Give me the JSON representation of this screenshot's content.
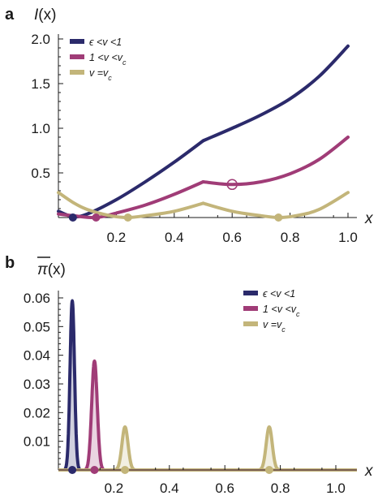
{
  "colors": {
    "blue": "#2b2a6b",
    "magenta": "#a03c77",
    "khaki": "#c3b57a",
    "axis": "#1a1a1a"
  },
  "chart_data": [
    {
      "type": "line",
      "panel": "a",
      "ylabel": "I(x)",
      "xlabel": "x",
      "xlim": [
        0.0,
        1.0
      ],
      "ylim": [
        0.0,
        2.0
      ],
      "xticks": [
        0.2,
        0.4,
        0.6,
        0.8,
        1.0
      ],
      "xtick_labels": [
        "0.2",
        "0.4",
        "0.6",
        "0.8",
        "1.0"
      ],
      "yticks": [
        0.5,
        1.0,
        1.5,
        2.0
      ],
      "ytick_labels": [
        "0.5",
        "1.0",
        "1.5",
        "2.0"
      ],
      "legend_position": "top-left",
      "series": [
        {
          "name": "ϵ <v <1",
          "color": "#2b2a6b",
          "x": [
            0.0,
            0.05,
            0.1,
            0.2,
            0.3,
            0.4,
            0.5,
            0.6,
            0.7,
            0.8,
            0.9,
            1.0
          ],
          "y": [
            0.07,
            0.01,
            0.04,
            0.2,
            0.4,
            0.62,
            0.86,
            1.0,
            1.15,
            1.33,
            1.58,
            1.92
          ]
        },
        {
          "name": "1 <v <v_c",
          "color": "#a03c77",
          "x": [
            0.0,
            0.05,
            0.13,
            0.2,
            0.3,
            0.4,
            0.5,
            0.6,
            0.7,
            0.8,
            0.9,
            1.0
          ],
          "y": [
            0.04,
            0.02,
            0.0,
            0.05,
            0.14,
            0.26,
            0.4,
            0.37,
            0.4,
            0.49,
            0.65,
            0.9
          ]
        },
        {
          "name": "v =v_c",
          "color": "#c3b57a",
          "x": [
            0.0,
            0.05,
            0.1,
            0.18,
            0.24,
            0.3,
            0.4,
            0.5,
            0.6,
            0.7,
            0.76,
            0.82,
            0.9,
            1.0
          ],
          "y": [
            0.28,
            0.17,
            0.09,
            0.02,
            0.0,
            0.02,
            0.07,
            0.16,
            0.07,
            0.02,
            0.0,
            0.02,
            0.09,
            0.28
          ]
        }
      ],
      "dots": [
        {
          "x": 0.05,
          "y": 0.0,
          "color": "#2b2a6b"
        },
        {
          "x": 0.13,
          "y": 0.0,
          "color": "#a03c77"
        },
        {
          "x": 0.24,
          "y": 0.0,
          "color": "#c3b57a"
        },
        {
          "x": 0.76,
          "y": 0.0,
          "color": "#c3b57a"
        }
      ],
      "open_circle": {
        "x": 0.6,
        "y": 0.37,
        "color": "#a03c77"
      }
    },
    {
      "type": "area",
      "panel": "b",
      "ylabel": "π(x)",
      "xlabel": "x",
      "xlim": [
        0.0,
        1.0
      ],
      "ylim": [
        0.0,
        0.06
      ],
      "xticks": [
        0.2,
        0.4,
        0.6,
        0.8,
        1.0
      ],
      "xtick_labels": [
        "0.2",
        "0.4",
        "0.6",
        "0.8",
        "1.0"
      ],
      "yticks": [
        0.01,
        0.02,
        0.03,
        0.04,
        0.05,
        0.06
      ],
      "ytick_labels": [
        "0.01",
        "0.02",
        "0.03",
        "0.04",
        "0.05",
        "0.06"
      ],
      "legend_position": "top-right",
      "series": [
        {
          "name": "ϵ <v <1",
          "color": "#2b2a6b",
          "peaks": [
            {
              "x": 0.05,
              "height": 0.059,
              "width": 0.008
            }
          ]
        },
        {
          "name": "1 <v <v_c",
          "color": "#a03c77",
          "peaks": [
            {
              "x": 0.13,
              "height": 0.038,
              "width": 0.01
            }
          ]
        },
        {
          "name": "v =v_c",
          "color": "#c3b57a",
          "peaks": [
            {
              "x": 0.24,
              "height": 0.015,
              "width": 0.011
            },
            {
              "x": 0.76,
              "height": 0.015,
              "width": 0.011
            }
          ]
        }
      ],
      "dots": [
        {
          "x": 0.05,
          "y": 0.0,
          "color": "#2b2a6b"
        },
        {
          "x": 0.13,
          "y": 0.0,
          "color": "#a03c77"
        },
        {
          "x": 0.24,
          "y": 0.0,
          "color": "#c3b57a"
        },
        {
          "x": 0.76,
          "y": 0.0,
          "color": "#c3b57a"
        }
      ]
    }
  ]
}
